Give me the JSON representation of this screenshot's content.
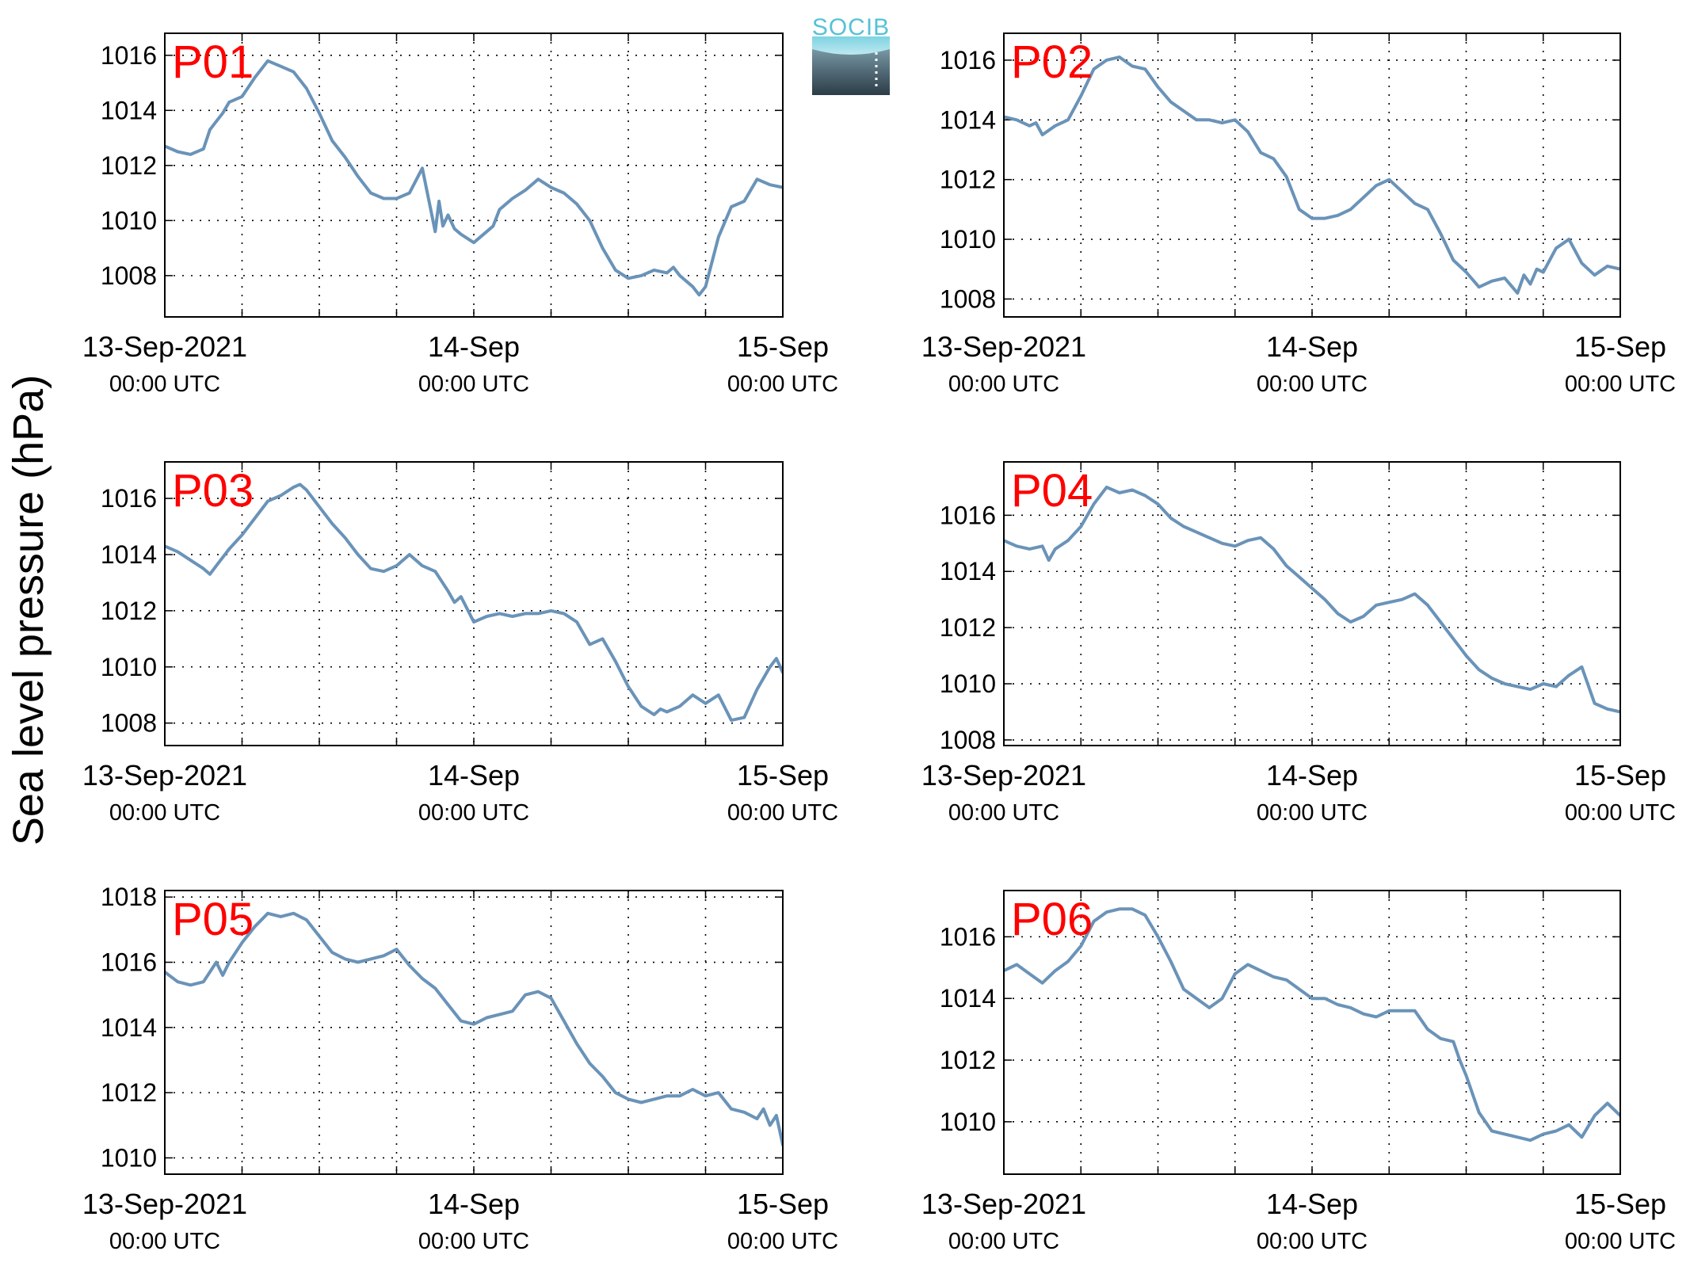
{
  "logo": {
    "text": "SOCIB"
  },
  "ylabel": "Sea level pressure (hPa)",
  "x_axis": {
    "ticks": [
      {
        "hour": 0,
        "line1": "13-Sep-2021",
        "line2": "00:00 UTC"
      },
      {
        "hour": 24,
        "line1": "14-Sep",
        "line2": "00:00 UTC"
      },
      {
        "hour": 48,
        "line1": "15-Sep",
        "line2": "00:00 UTC"
      }
    ],
    "grid_every_hours": 6
  },
  "colors": {
    "line": "#6a93b8",
    "label": "#ff0000",
    "axis": "#000000"
  },
  "chart_data": [
    {
      "type": "line",
      "label": "P01",
      "ylim": [
        1006.5,
        1016.8
      ],
      "yticks": [
        1008,
        1010,
        1012,
        1014,
        1016
      ],
      "xlim": [
        0,
        48
      ],
      "grid": true,
      "x": [
        0,
        1,
        2,
        3,
        3.5,
        4,
        4.5,
        5,
        6,
        7,
        8,
        9,
        10,
        11,
        12,
        13,
        14,
        15,
        16,
        17,
        18,
        19,
        20,
        21,
        21.3,
        21.6,
        22,
        22.5,
        23,
        24,
        25,
        25.5,
        26,
        27,
        28,
        29,
        30,
        31,
        32,
        33,
        34,
        35,
        36,
        37,
        38,
        39,
        39.5,
        40,
        41,
        41.5,
        42,
        43,
        44,
        45,
        46,
        47,
        48
      ],
      "y": [
        1012.7,
        1012.5,
        1012.4,
        1012.6,
        1013.3,
        1013.6,
        1013.9,
        1014.3,
        1014.5,
        1015.2,
        1015.8,
        1015.6,
        1015.4,
        1014.8,
        1013.9,
        1012.9,
        1012.3,
        1011.6,
        1011.0,
        1010.8,
        1010.8,
        1011.0,
        1011.9,
        1009.6,
        1010.7,
        1009.8,
        1010.2,
        1009.7,
        1009.5,
        1009.2,
        1009.6,
        1009.8,
        1010.4,
        1010.8,
        1011.1,
        1011.5,
        1011.2,
        1011.0,
        1010.6,
        1010.0,
        1009.0,
        1008.2,
        1007.9,
        1008.0,
        1008.2,
        1008.1,
        1008.3,
        1008.0,
        1007.6,
        1007.3,
        1007.6,
        1009.4,
        1010.5,
        1010.7,
        1011.5,
        1011.3,
        1011.2
      ]
    },
    {
      "type": "line",
      "label": "P02",
      "ylim": [
        1007.4,
        1016.9
      ],
      "yticks": [
        1008,
        1010,
        1012,
        1014,
        1016
      ],
      "xlim": [
        0,
        48
      ],
      "grid": true,
      "x": [
        0,
        1,
        2,
        2.5,
        3,
        4,
        5,
        6,
        7,
        8,
        9,
        10,
        11,
        12,
        13,
        14,
        15,
        16,
        17,
        18,
        19,
        20,
        21,
        22,
        23,
        24,
        25,
        26,
        27,
        28,
        29,
        30,
        31,
        32,
        33,
        34,
        35,
        36,
        37,
        38,
        39,
        40,
        40.5,
        41,
        41.5,
        42,
        43,
        44,
        44.5,
        45,
        46,
        47,
        48
      ],
      "y": [
        1014.1,
        1014.0,
        1013.8,
        1013.9,
        1013.5,
        1013.8,
        1014.0,
        1014.8,
        1015.7,
        1016.0,
        1016.1,
        1015.8,
        1015.7,
        1015.1,
        1014.6,
        1014.3,
        1014.0,
        1014.0,
        1013.9,
        1014.0,
        1013.6,
        1012.9,
        1012.7,
        1012.1,
        1011.0,
        1010.7,
        1010.7,
        1010.8,
        1011.0,
        1011.4,
        1011.8,
        1012.0,
        1011.6,
        1011.2,
        1011.0,
        1010.2,
        1009.3,
        1008.9,
        1008.4,
        1008.6,
        1008.7,
        1008.2,
        1008.8,
        1008.5,
        1009.0,
        1008.9,
        1009.7,
        1010.0,
        1009.6,
        1009.2,
        1008.8,
        1009.1,
        1009.0
      ]
    },
    {
      "type": "line",
      "label": "P03",
      "ylim": [
        1007.2,
        1017.3
      ],
      "yticks": [
        1008,
        1010,
        1012,
        1014,
        1016
      ],
      "xlim": [
        0,
        48
      ],
      "grid": true,
      "x": [
        0,
        1,
        2,
        3,
        3.5,
        4,
        5,
        6,
        7,
        8,
        9,
        10,
        10.5,
        11,
        12,
        13,
        14,
        15,
        16,
        17,
        18,
        19,
        20,
        21,
        22,
        22.5,
        23,
        24,
        25,
        26,
        27,
        28,
        29,
        30,
        31,
        32,
        33,
        34,
        35,
        36,
        37,
        38,
        38.5,
        39,
        40,
        41,
        42,
        43,
        44,
        45,
        46,
        47,
        47.5,
        48
      ],
      "y": [
        1014.3,
        1014.1,
        1013.8,
        1013.5,
        1013.3,
        1013.6,
        1014.2,
        1014.7,
        1015.3,
        1015.9,
        1016.1,
        1016.4,
        1016.5,
        1016.3,
        1015.7,
        1015.1,
        1014.6,
        1014.0,
        1013.5,
        1013.4,
        1013.6,
        1014.0,
        1013.6,
        1013.4,
        1012.7,
        1012.3,
        1012.5,
        1011.6,
        1011.8,
        1011.9,
        1011.8,
        1011.9,
        1011.9,
        1012.0,
        1011.9,
        1011.6,
        1010.8,
        1011.0,
        1010.2,
        1009.3,
        1008.6,
        1008.3,
        1008.5,
        1008.4,
        1008.6,
        1009.0,
        1008.7,
        1009.0,
        1008.1,
        1008.2,
        1009.2,
        1010.0,
        1010.3,
        1009.8
      ]
    },
    {
      "type": "line",
      "label": "P04",
      "ylim": [
        1007.8,
        1017.9
      ],
      "yticks": [
        1008,
        1010,
        1012,
        1014,
        1016
      ],
      "xlim": [
        0,
        48
      ],
      "grid": true,
      "x": [
        0,
        1,
        2,
        3,
        3.5,
        4,
        5,
        6,
        7,
        8,
        9,
        10,
        11,
        12,
        13,
        14,
        15,
        16,
        17,
        18,
        19,
        20,
        21,
        22,
        23,
        24,
        25,
        26,
        27,
        28,
        29,
        30,
        31,
        32,
        33,
        34,
        35,
        36,
        37,
        38,
        39,
        40,
        41,
        42,
        43,
        44,
        45,
        46,
        47,
        48
      ],
      "y": [
        1015.1,
        1014.9,
        1014.8,
        1014.9,
        1014.4,
        1014.8,
        1015.1,
        1015.6,
        1016.4,
        1017.0,
        1016.8,
        1016.9,
        1016.7,
        1016.4,
        1015.9,
        1015.6,
        1015.4,
        1015.2,
        1015.0,
        1014.9,
        1015.1,
        1015.2,
        1014.8,
        1014.2,
        1013.8,
        1013.4,
        1013.0,
        1012.5,
        1012.2,
        1012.4,
        1012.8,
        1012.9,
        1013.0,
        1013.2,
        1012.8,
        1012.2,
        1011.6,
        1011.0,
        1010.5,
        1010.2,
        1010.0,
        1009.9,
        1009.8,
        1010.0,
        1009.9,
        1010.3,
        1010.6,
        1009.3,
        1009.1,
        1009.0
      ]
    },
    {
      "type": "line",
      "label": "P05",
      "ylim": [
        1009.5,
        1018.2
      ],
      "yticks": [
        1010,
        1012,
        1014,
        1016,
        1018
      ],
      "xlim": [
        0,
        48
      ],
      "grid": true,
      "x": [
        0,
        1,
        2,
        3,
        4,
        4.5,
        5,
        6,
        7,
        8,
        9,
        10,
        11,
        12,
        13,
        14,
        15,
        16,
        17,
        18,
        19,
        20,
        21,
        22,
        23,
        24,
        25,
        26,
        27,
        28,
        29,
        30,
        31,
        32,
        33,
        34,
        35,
        36,
        37,
        38,
        39,
        40,
        41,
        42,
        43,
        44,
        45,
        46,
        46.5,
        47,
        47.5,
        48
      ],
      "y": [
        1015.7,
        1015.4,
        1015.3,
        1015.4,
        1016.0,
        1015.6,
        1016.0,
        1016.6,
        1017.1,
        1017.5,
        1017.4,
        1017.5,
        1017.3,
        1016.8,
        1016.3,
        1016.1,
        1016.0,
        1016.1,
        1016.2,
        1016.4,
        1015.9,
        1015.5,
        1015.2,
        1014.7,
        1014.2,
        1014.1,
        1014.3,
        1014.4,
        1014.5,
        1015.0,
        1015.1,
        1014.9,
        1014.2,
        1013.5,
        1012.9,
        1012.5,
        1012.0,
        1011.8,
        1011.7,
        1011.8,
        1011.9,
        1011.9,
        1012.1,
        1011.9,
        1012.0,
        1011.5,
        1011.4,
        1011.2,
        1011.5,
        1011.0,
        1011.3,
        1010.4
      ]
    },
    {
      "type": "line",
      "label": "P06",
      "ylim": [
        1008.3,
        1017.5
      ],
      "yticks": [
        1010,
        1012,
        1014,
        1016
      ],
      "xlim": [
        0,
        48
      ],
      "grid": true,
      "x": [
        0,
        1,
        2,
        3,
        4,
        5,
        6,
        7,
        8,
        9,
        10,
        11,
        12,
        13,
        14,
        15,
        16,
        17,
        18,
        19,
        20,
        21,
        22,
        23,
        24,
        25,
        26,
        27,
        28,
        29,
        30,
        31,
        32,
        33,
        34,
        35,
        35.5,
        36,
        37,
        38,
        39,
        40,
        41,
        42,
        43,
        44,
        45,
        46,
        47,
        48
      ],
      "y": [
        1014.9,
        1015.1,
        1014.8,
        1014.5,
        1014.9,
        1015.2,
        1015.7,
        1016.5,
        1016.8,
        1016.9,
        1016.9,
        1016.7,
        1016.0,
        1015.2,
        1014.3,
        1014.0,
        1013.7,
        1014.0,
        1014.8,
        1015.1,
        1014.9,
        1014.7,
        1014.6,
        1014.3,
        1014.0,
        1014.0,
        1013.8,
        1013.7,
        1013.5,
        1013.4,
        1013.6,
        1013.6,
        1013.6,
        1013.0,
        1012.7,
        1012.6,
        1012.0,
        1011.5,
        1010.3,
        1009.7,
        1009.6,
        1009.5,
        1009.4,
        1009.6,
        1009.7,
        1009.9,
        1009.5,
        1010.2,
        1010.6,
        1010.2
      ]
    }
  ]
}
